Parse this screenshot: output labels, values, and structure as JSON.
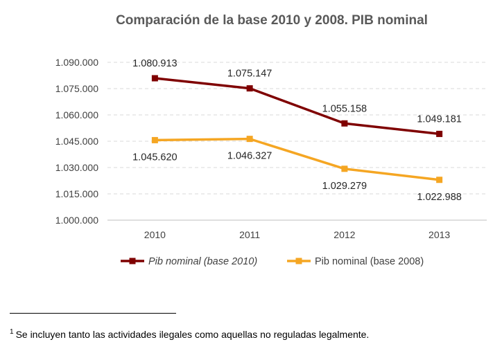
{
  "chart_data": {
    "type": "line",
    "title": "Comparación de la base 2010 y 2008. PIB nominal",
    "categories": [
      "2010",
      "2011",
      "2012",
      "2013"
    ],
    "ylim": [
      1000000,
      1090000
    ],
    "yticks": [
      1000000,
      1015000,
      1030000,
      1045000,
      1060000,
      1075000,
      1090000
    ],
    "ytick_labels": [
      "1.000.000",
      "1.015.000",
      "1.030.000",
      "1.045.000",
      "1.060.000",
      "1.075.000",
      "1.090.000"
    ],
    "grid": true,
    "legend_position": "bottom",
    "xlabel": "",
    "ylabel": "",
    "series": [
      {
        "name": "Pib nominal (base 2010)",
        "color": "#7f0000",
        "legend_style": "italic",
        "label_position": "above",
        "values": [
          1080913,
          1075147,
          1055158,
          1049181
        ],
        "labels": [
          "1.080.913",
          "1.075.147",
          "1.055.158",
          "1.049.181"
        ]
      },
      {
        "name": "Pib nominal (base 2008)",
        "color": "#f5a623",
        "legend_style": "normal",
        "label_position": "below",
        "values": [
          1045620,
          1046327,
          1029279,
          1022988
        ],
        "labels": [
          "1.045.620",
          "1.046.327",
          "1.029.279",
          "1.022.988"
        ]
      }
    ]
  },
  "footnote": {
    "marker": "1",
    "text": "Se incluyen tanto las actividades ilegales como aquellas no reguladas legalmente."
  }
}
